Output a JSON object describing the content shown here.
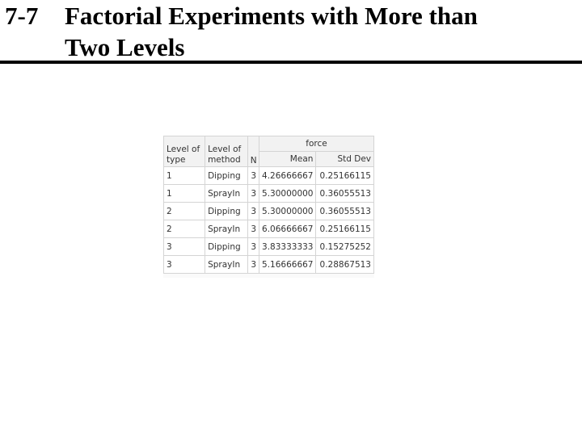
{
  "slide": {
    "number": "7-7",
    "title_line1": "Factorial Experiments with More than",
    "title_line2": "Two Levels"
  },
  "table": {
    "headers": {
      "type_line1": "Level of",
      "type_line2": "type",
      "method_line1": "Level of",
      "method_line2": "method",
      "n": "N",
      "group": "force",
      "mean": "Mean",
      "std": "Std Dev"
    },
    "rows": [
      {
        "type": "1",
        "method": "Dipping",
        "n": "3",
        "mean": "4.26666667",
        "std": "0.25166115"
      },
      {
        "type": "1",
        "method": "SprayIn",
        "n": "3",
        "mean": "5.30000000",
        "std": "0.36055513"
      },
      {
        "type": "2",
        "method": "Dipping",
        "n": "3",
        "mean": "5.30000000",
        "std": "0.36055513"
      },
      {
        "type": "2",
        "method": "SprayIn",
        "n": "3",
        "mean": "6.06666667",
        "std": "0.25166115"
      },
      {
        "type": "3",
        "method": "Dipping",
        "n": "3",
        "mean": "3.83333333",
        "std": "0.15275252"
      },
      {
        "type": "3",
        "method": "SprayIn",
        "n": "3",
        "mean": "5.16666667",
        "std": "0.28867513"
      }
    ]
  }
}
